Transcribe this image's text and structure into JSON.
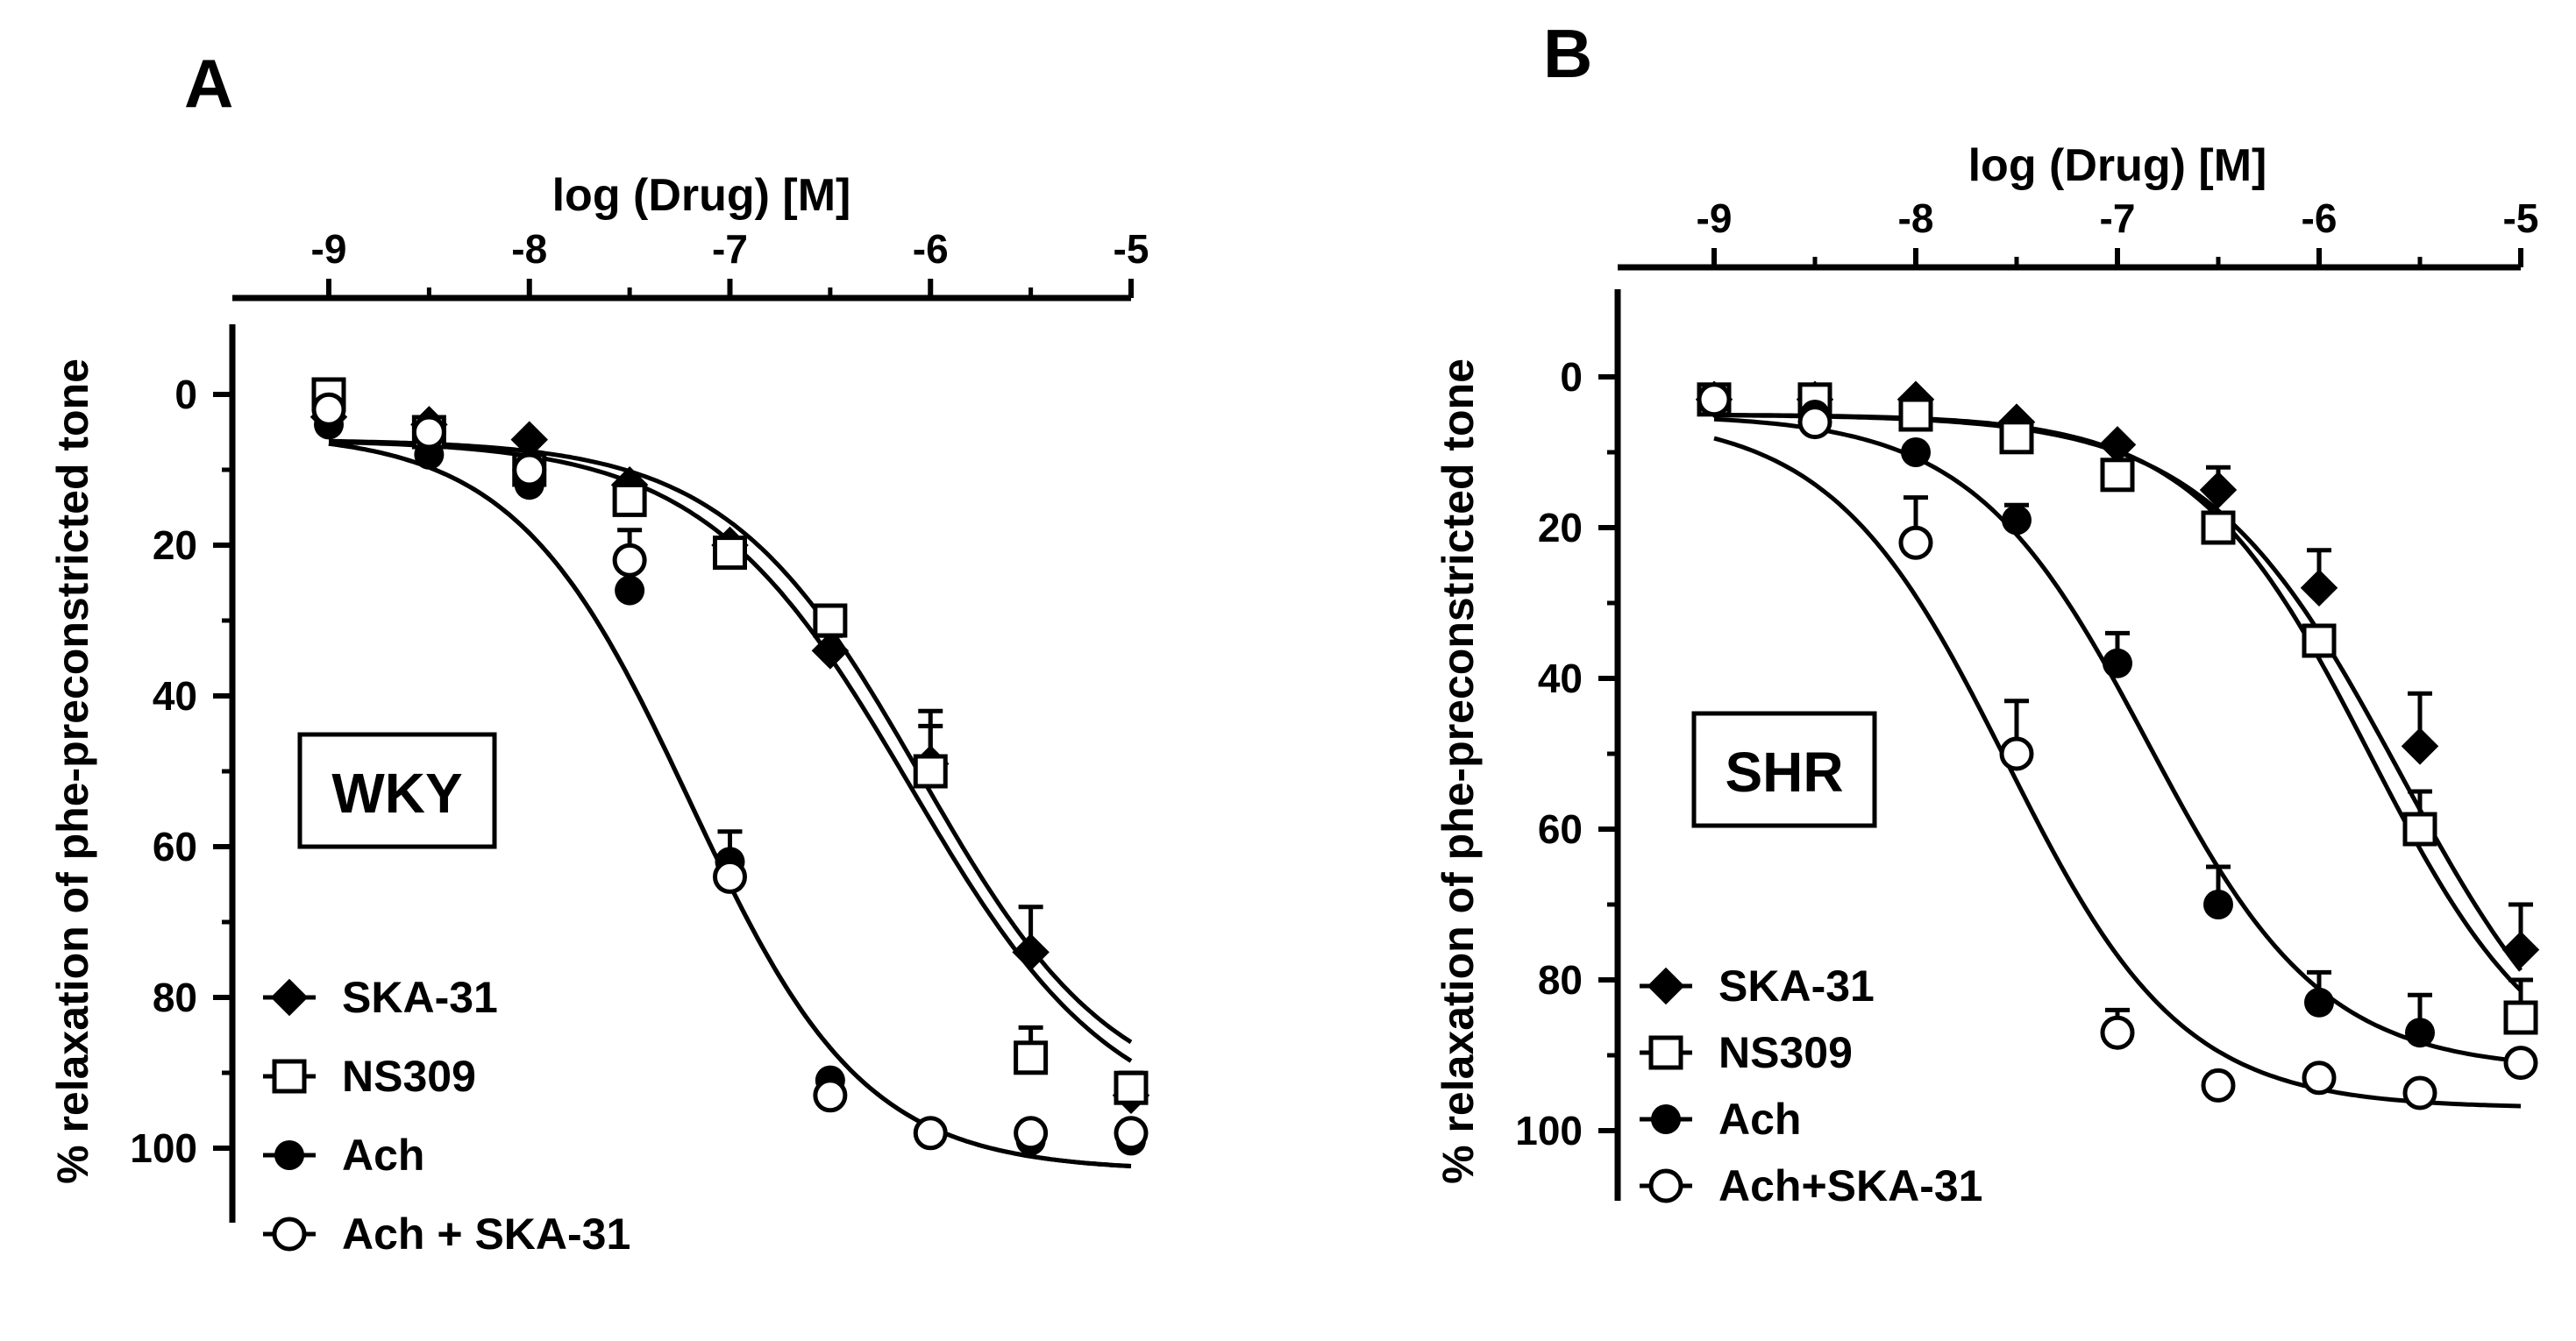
{
  "chart_data": [
    {
      "type": "scatter",
      "panel_label": "A",
      "group_label": "WKY",
      "xlabel": "log (Drug) [M]",
      "ylabel": "% relaxation of phe-preconstricted tone",
      "x_axis_position": "top",
      "y_axis_inverted": true,
      "xlim": [
        -9,
        -5
      ],
      "ylim": [
        0,
        100
      ],
      "x_ticks": [
        -9,
        -8,
        -7,
        -6,
        -5
      ],
      "y_ticks": [
        0,
        20,
        40,
        60,
        80,
        100
      ],
      "x_tick_labels": [
        "-9",
        "-8",
        "-7",
        "-6",
        "-5"
      ],
      "y_tick_labels": [
        "0",
        "20",
        "40",
        "60",
        "80",
        "100"
      ],
      "grid": false,
      "legend_position": "bottom-left",
      "series": [
        {
          "name": "SKA-31",
          "marker": "diamond-filled",
          "x": [
            -9,
            -8.5,
            -8,
            -7.5,
            -7,
            -6.5,
            -6,
            -5.5,
            -5
          ],
          "y": [
            3,
            4,
            6,
            12,
            20,
            34,
            49,
            74,
            93
          ],
          "err": [
            0,
            0,
            0,
            0,
            0,
            2,
            5,
            6,
            2
          ]
        },
        {
          "name": "NS309",
          "marker": "square-open",
          "x": [
            -9,
            -8.5,
            -8,
            -7.5,
            -7,
            -6.5,
            -6,
            -5.5,
            -5
          ],
          "y": [
            0,
            5,
            10,
            14,
            21,
            30,
            50,
            88,
            92
          ],
          "err": [
            0,
            0,
            0,
            0,
            0,
            0,
            8,
            4,
            2
          ]
        },
        {
          "name": "Ach",
          "marker": "circle-filled",
          "x": [
            -9,
            -8.5,
            -8,
            -7.5,
            -7,
            -6.5,
            -6,
            -5.5,
            -5
          ],
          "y": [
            4,
            8,
            12,
            26,
            62,
            91,
            98,
            99,
            99
          ],
          "err": [
            0,
            0,
            0,
            0,
            4,
            0,
            0,
            0,
            0
          ]
        },
        {
          "name": "Ach + SKA-31",
          "marker": "circle-open",
          "x": [
            -9,
            -8.5,
            -8,
            -7.5,
            -7,
            -6.5,
            -6,
            -5.5,
            -5
          ],
          "y": [
            2,
            5,
            10,
            22,
            64,
            93,
            98,
            98,
            98
          ],
          "err": [
            0,
            0,
            0,
            4,
            0,
            0,
            0,
            0,
            0
          ]
        }
      ],
      "fits": [
        {
          "bottom": 5,
          "top": 103,
          "logEC50": -7.2,
          "hill": 1.0
        },
        {
          "bottom": 5,
          "top": 103,
          "logEC50": -7.2,
          "hill": 1.0
        },
        {
          "bottom": 6,
          "top": 98,
          "logEC50": -6.1,
          "hill": 0.85
        },
        {
          "bottom": 6,
          "top": 95,
          "logEC50": -6.05,
          "hill": 0.9
        }
      ]
    },
    {
      "type": "scatter",
      "panel_label": "B",
      "group_label": "SHR",
      "xlabel": "log (Drug) [M]",
      "ylabel": "% relaxation of phe-preconstricted tone",
      "x_axis_position": "top",
      "y_axis_inverted": true,
      "xlim": [
        -9,
        -5
      ],
      "ylim": [
        0,
        100
      ],
      "x_ticks": [
        -9,
        -8,
        -7,
        -6,
        -5
      ],
      "y_ticks": [
        0,
        20,
        40,
        60,
        80,
        100
      ],
      "x_tick_labels": [
        "-9",
        "-8",
        "-7",
        "-6",
        "-5"
      ],
      "y_tick_labels": [
        "0",
        "20",
        "40",
        "60",
        "80",
        "100"
      ],
      "grid": false,
      "legend_position": "bottom-left",
      "series": [
        {
          "name": "SKA-31",
          "marker": "diamond-filled",
          "x": [
            -9,
            -8.5,
            -8,
            -7.5,
            -7,
            -6.5,
            -6,
            -5.5,
            -5
          ],
          "y": [
            3,
            3,
            3,
            6,
            9,
            15,
            28,
            49,
            76
          ],
          "err": [
            0,
            0,
            0,
            0,
            0,
            3,
            5,
            7,
            6
          ]
        },
        {
          "name": "NS309",
          "marker": "square-open",
          "x": [
            -9,
            -8.5,
            -8,
            -7.5,
            -7,
            -6.5,
            -6,
            -5.5,
            -5
          ],
          "y": [
            3,
            3,
            5,
            8,
            13,
            20,
            35,
            60,
            85
          ],
          "err": [
            0,
            0,
            0,
            0,
            0,
            0,
            0,
            5,
            5
          ]
        },
        {
          "name": "Ach",
          "marker": "circle-filled",
          "x": [
            -9,
            -8.5,
            -8,
            -7.5,
            -7,
            -6.5,
            -6,
            -5.5,
            -5
          ],
          "y": [
            3,
            5,
            10,
            19,
            38,
            70,
            83,
            87,
            91
          ],
          "err": [
            0,
            0,
            0,
            2,
            4,
            5,
            4,
            5,
            0
          ]
        },
        {
          "name": "Ach+SKA-31",
          "marker": "circle-open",
          "x": [
            -9,
            -8.5,
            -8,
            -7.5,
            -7,
            -6.5,
            -6,
            -5.5,
            -5
          ],
          "y": [
            3,
            6,
            22,
            50,
            87,
            94,
            93,
            95,
            91
          ],
          "err": [
            0,
            0,
            6,
            7,
            3,
            0,
            0,
            0,
            0
          ]
        }
      ],
      "fits": [
        {
          "bottom": 5,
          "top": 97,
          "logEC50": -7.55,
          "hill": 1.0
        },
        {
          "bottom": 5,
          "top": 92,
          "logEC50": -6.85,
          "hill": 1.0
        },
        {
          "bottom": 5,
          "top": 95,
          "logEC50": -5.75,
          "hill": 1.0
        },
        {
          "bottom": 5,
          "top": 100,
          "logEC50": -5.6,
          "hill": 0.9
        }
      ]
    }
  ]
}
